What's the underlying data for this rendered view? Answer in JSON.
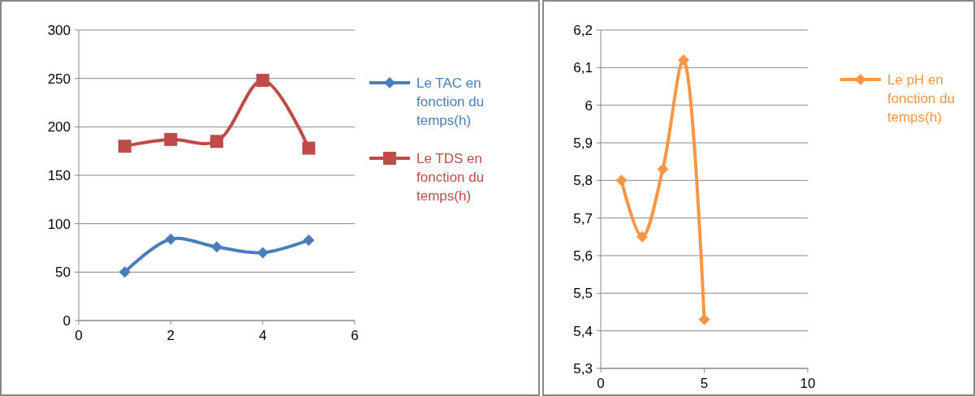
{
  "chart_data": [
    {
      "type": "line",
      "x": [
        1,
        2,
        3,
        4,
        5
      ],
      "xlim": [
        0,
        6
      ],
      "xticks": [
        0,
        2,
        4,
        6
      ],
      "ylim": [
        0,
        300
      ],
      "yticks": [
        0,
        50,
        100,
        150,
        200,
        250,
        300
      ],
      "grid": "y",
      "legend": "right",
      "series": [
        {
          "name": "Le TAC en fonction du temps(h)",
          "color": "#4a7ebb",
          "marker": "diamond",
          "values": [
            50,
            84,
            76,
            70,
            83
          ]
        },
        {
          "name": "Le TDS en fonction du temps(h)",
          "color": "#be4b48",
          "marker": "square",
          "values": [
            180,
            187,
            185,
            248,
            178
          ]
        }
      ]
    },
    {
      "type": "line",
      "x": [
        1,
        2,
        3,
        4,
        5
      ],
      "xlim": [
        0,
        10
      ],
      "xticks": [
        0,
        5,
        10
      ],
      "ylim": [
        5.3,
        6.2
      ],
      "yticks": [
        {
          "value": 5.3,
          "label": "5,3"
        },
        {
          "value": 5.4,
          "label": "5,4"
        },
        {
          "value": 5.5,
          "label": "5,5"
        },
        {
          "value": 5.6,
          "label": "5,6"
        },
        {
          "value": 5.7,
          "label": "5,7"
        },
        {
          "value": 5.8,
          "label": "5,8"
        },
        {
          "value": 5.9,
          "label": "5,9"
        },
        {
          "value": 6,
          "label": "6"
        },
        {
          "value": 6.1,
          "label": "6,1"
        },
        {
          "value": 6.2,
          "label": "6,2"
        }
      ],
      "grid": "y",
      "legend": "right",
      "series": [
        {
          "name": "Le pH en fonction du temps(h)",
          "color": "#f79646",
          "marker": "diamond",
          "values": [
            5.8,
            5.65,
            5.83,
            6.12,
            5.43
          ]
        }
      ]
    }
  ]
}
